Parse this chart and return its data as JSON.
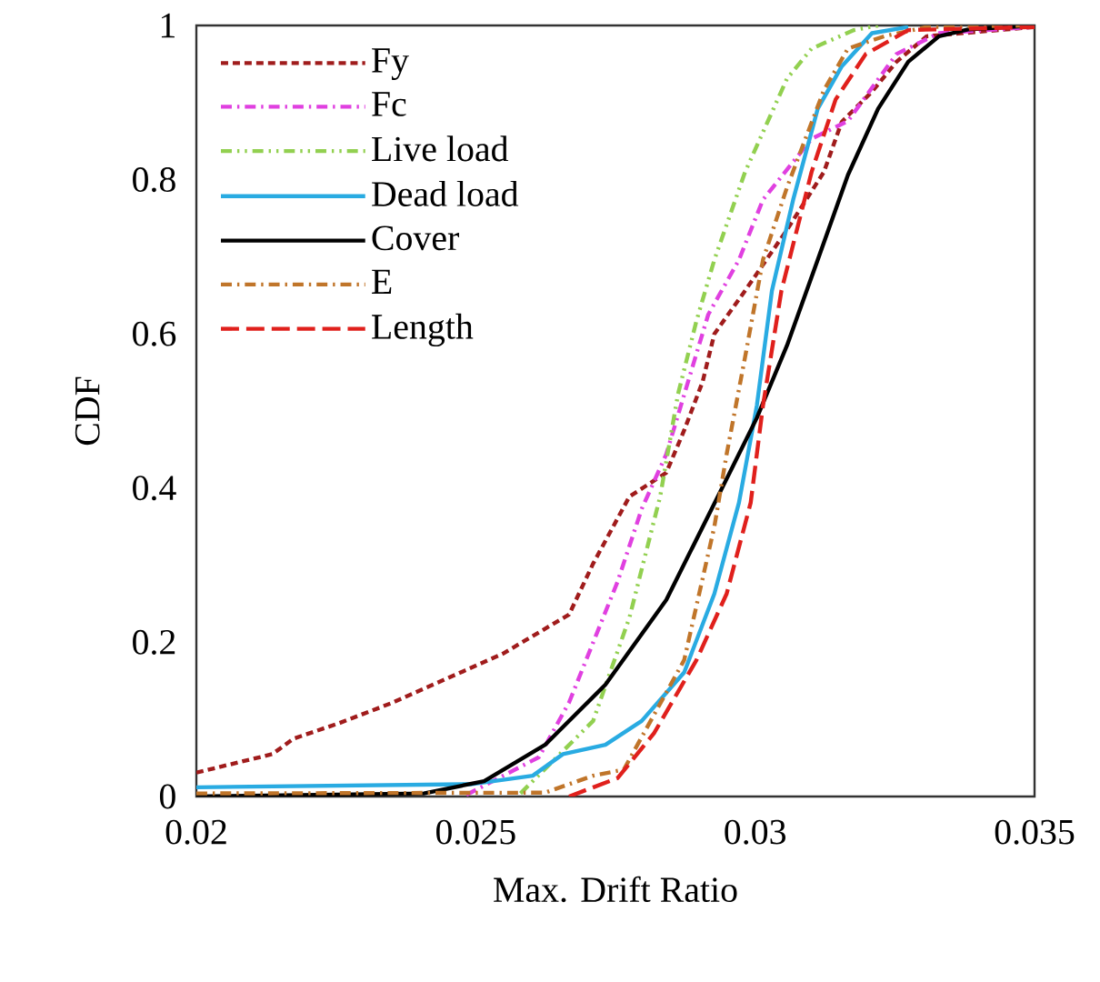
{
  "chart_data": {
    "type": "line",
    "xlabel": "Max. Drift Ratio",
    "ylabel": "CDF",
    "xlim": [
      0.02,
      0.035
    ],
    "xticks": [
      0.02,
      0.025,
      0.03,
      0.035
    ],
    "ylim": [
      0,
      1
    ],
    "yticks": [
      0,
      0.2,
      0.4,
      0.6,
      0.8,
      1
    ],
    "grid": false,
    "legend": "top left",
    "series": [
      {
        "name": "Fy",
        "color": "#a01c1c",
        "line_style": "dashed",
        "x": [
          0.02,
          0.02136,
          0.02174,
          0.02255,
          0.02352,
          0.02461,
          0.02548,
          0.02667,
          0.0271,
          0.02775,
          0.02841,
          0.02873,
          0.02906,
          0.02927,
          0.02982,
          0.03057,
          0.03123,
          0.03155,
          0.03209,
          0.03253,
          0.03307,
          0.035
        ],
        "values": [
          0.031,
          0.055,
          0.075,
          0.095,
          0.122,
          0.157,
          0.185,
          0.236,
          0.302,
          0.389,
          0.42,
          0.475,
          0.538,
          0.6,
          0.656,
          0.735,
          0.81,
          0.875,
          0.914,
          0.953,
          0.986,
          0.998
        ]
      },
      {
        "name": "Fc",
        "color": "#e040e0",
        "line_style": "dashdot",
        "x": [
          0.02483,
          0.02613,
          0.02667,
          0.02754,
          0.02797,
          0.02841,
          0.02916,
          0.02971,
          0.03014,
          0.03101,
          0.03166,
          0.03253,
          0.03329,
          0.035
        ],
        "values": [
          0.002,
          0.051,
          0.122,
          0.279,
          0.373,
          0.444,
          0.625,
          0.696,
          0.774,
          0.853,
          0.876,
          0.963,
          0.99,
          0.998
        ]
      },
      {
        "name": "Live load",
        "color": "#92d050",
        "line_style": "dashdotdot",
        "x": [
          0.0258,
          0.0271,
          0.02775,
          0.0283,
          0.02862,
          0.02895,
          0.02927,
          0.02982,
          0.03057,
          0.03101,
          0.03177,
          0.0322
        ],
        "values": [
          0.004,
          0.098,
          0.232,
          0.389,
          0.522,
          0.617,
          0.696,
          0.81,
          0.931,
          0.97,
          0.994,
          1
        ]
      },
      {
        "name": "Dead load",
        "color": "#29abe2",
        "line_style": "solid",
        "x": [
          0.02,
          0.02493,
          0.02602,
          0.02656,
          0.02732,
          0.02797,
          0.02873,
          0.02927,
          0.02971,
          0.03003,
          0.0303,
          0.03068,
          0.03112,
          0.03155,
          0.03209,
          0.03274
        ],
        "values": [
          0.012,
          0.016,
          0.027,
          0.055,
          0.067,
          0.098,
          0.161,
          0.263,
          0.381,
          0.507,
          0.656,
          0.774,
          0.892,
          0.947,
          0.99,
          0.998
        ]
      },
      {
        "name": "Cover",
        "color": "#000000",
        "line_style": "solid",
        "x": [
          0.02,
          0.02407,
          0.02515,
          0.02624,
          0.02732,
          0.02841,
          0.02949,
          0.03003,
          0.03057,
          0.03112,
          0.03166,
          0.0322,
          0.03274,
          0.03329,
          0.03383,
          0.035
        ],
        "values": [
          0,
          0.004,
          0.02,
          0.067,
          0.145,
          0.255,
          0.412,
          0.491,
          0.585,
          0.696,
          0.806,
          0.892,
          0.953,
          0.986,
          0.995,
          1
        ]
      },
      {
        "name": "E",
        "color": "#c0752a",
        "line_style": "dashdot",
        "x": [
          0.02,
          0.02624,
          0.0271,
          0.02765,
          0.02873,
          0.02927,
          0.02949,
          0.02982,
          0.03014,
          0.03057,
          0.03123,
          0.03166,
          0.03231,
          0.03307,
          0.035
        ],
        "values": [
          0.004,
          0.005,
          0.027,
          0.035,
          0.177,
          0.35,
          0.444,
          0.57,
          0.696,
          0.79,
          0.916,
          0.97,
          0.986,
          0.998,
          1
        ]
      },
      {
        "name": "Length",
        "color": "#e0201c",
        "line_style": "longdash",
        "x": [
          0.02667,
          0.02754,
          0.02819,
          0.02895,
          0.02949,
          0.02992,
          0.03014,
          0.03047,
          0.03101,
          0.03144,
          0.03198,
          0.03274,
          0.035
        ],
        "values": [
          0,
          0.024,
          0.082,
          0.177,
          0.263,
          0.381,
          0.507,
          0.656,
          0.81,
          0.904,
          0.963,
          0.994,
          0.998
        ]
      }
    ]
  }
}
